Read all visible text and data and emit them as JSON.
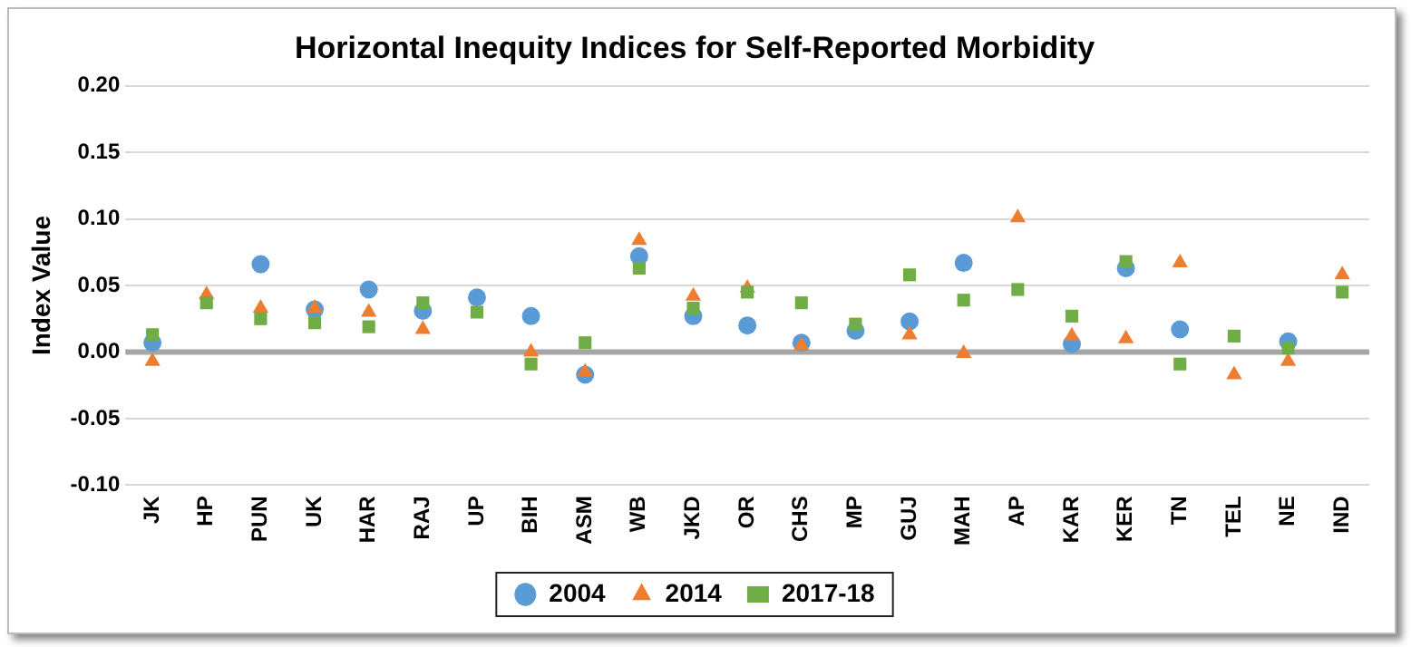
{
  "chart_data": {
    "type": "scatter",
    "title": "Horizontal Inequity Indices for Self-Reported Morbidity",
    "ylabel": "Index Value",
    "categories": [
      "JK",
      "HP",
      "PUN",
      "UK",
      "HAR",
      "RAJ",
      "UP",
      "BIH",
      "ASM",
      "WB",
      "JKD",
      "OR",
      "CHS",
      "MP",
      "GUJ",
      "MAH",
      "AP",
      "KAR",
      "KER",
      "TN",
      "TEL",
      "NE",
      "IND"
    ],
    "series": [
      {
        "name": "2004",
        "color": "#5b9bd5",
        "marker": "circle",
        "values": [
          0.007,
          null,
          0.066,
          0.032,
          0.047,
          0.031,
          0.041,
          0.027,
          -0.017,
          0.072,
          0.027,
          0.02,
          0.007,
          0.016,
          0.023,
          0.067,
          null,
          0.006,
          0.063,
          0.017,
          null,
          0.008,
          null
        ]
      },
      {
        "name": "2014",
        "color": "#ed7d31",
        "marker": "triangle",
        "values": [
          -0.007,
          0.043,
          0.033,
          0.033,
          0.03,
          0.017,
          null,
          0.0,
          -0.015,
          0.084,
          0.042,
          0.048,
          0.005,
          null,
          0.013,
          -0.001,
          0.101,
          0.012,
          0.01,
          0.067,
          -0.017,
          -0.007,
          0.058
        ]
      },
      {
        "name": "2017-18",
        "color": "#70ad47",
        "marker": "square",
        "values": [
          0.013,
          0.037,
          0.025,
          0.022,
          0.019,
          0.037,
          0.03,
          -0.009,
          0.007,
          0.063,
          0.033,
          0.045,
          0.037,
          0.021,
          0.058,
          0.039,
          0.047,
          0.027,
          0.068,
          -0.009,
          0.012,
          0.003,
          0.045
        ]
      }
    ],
    "ylim": [
      -0.1,
      0.2
    ],
    "yticks": [
      {
        "value": -0.1,
        "label": "-0.10"
      },
      {
        "value": -0.05,
        "label": "-0.05"
      },
      {
        "value": 0,
        "label": "0.00"
      },
      {
        "value": 0.05,
        "label": "0.05"
      },
      {
        "value": 0.1,
        "label": "0.10"
      },
      {
        "value": 0.15,
        "label": "0.15"
      },
      {
        "value": 0.2,
        "label": "0.20"
      }
    ],
    "ref_lines": [
      {
        "axis": "y",
        "value": 0,
        "color": "#a6a6a6"
      }
    ],
    "grid": "y",
    "legend": "bottom"
  }
}
